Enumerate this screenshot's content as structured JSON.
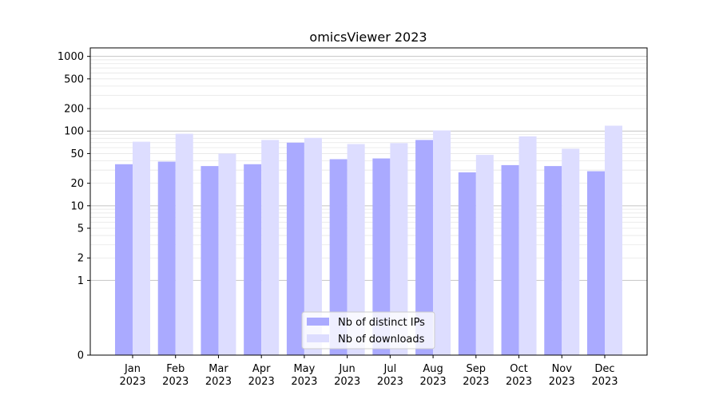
{
  "chart_data": {
    "type": "bar",
    "title": "omicsViewer 2023",
    "xlabel": "",
    "ylabel": "",
    "y_scale": "symlog",
    "ylim": [
      0,
      1300
    ],
    "y_ticks": [
      0,
      1,
      2,
      5,
      10,
      20,
      50,
      100,
      200,
      500,
      1000
    ],
    "grid": true,
    "legend_position": "bottom-center",
    "categories": [
      [
        "Jan",
        "2023"
      ],
      [
        "Feb",
        "2023"
      ],
      [
        "Mar",
        "2023"
      ],
      [
        "Apr",
        "2023"
      ],
      [
        "May",
        "2023"
      ],
      [
        "Jun",
        "2023"
      ],
      [
        "Jul",
        "2023"
      ],
      [
        "Aug",
        "2023"
      ],
      [
        "Sep",
        "2023"
      ],
      [
        "Oct",
        "2023"
      ],
      [
        "Nov",
        "2023"
      ],
      [
        "Dec",
        "2023"
      ]
    ],
    "series": [
      {
        "name": "Nb of distinct IPs",
        "color": "#aaaaff",
        "values": [
          36,
          39,
          34,
          36,
          70,
          42,
          43,
          76,
          28,
          35,
          34,
          29
        ]
      },
      {
        "name": "Nb of downloads",
        "color": "#ddddff",
        "values": [
          72,
          92,
          50,
          76,
          81,
          67,
          69,
          102,
          48,
          85,
          58,
          118
        ]
      }
    ]
  }
}
